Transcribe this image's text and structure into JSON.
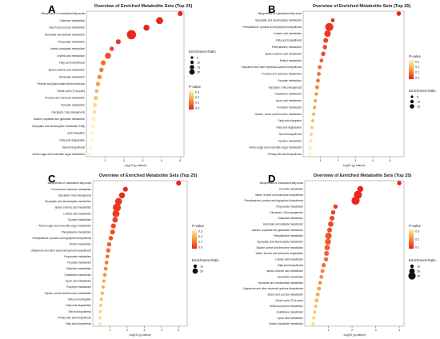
{
  "panels": [
    {
      "label": "A",
      "title": "Overview of Enriched Metabolite Sets (Top 25)",
      "xlabel": "-log10 (p-value)",
      "xlim": [
        0,
        5.2
      ],
      "xticks": [
        1,
        2,
        3,
        4,
        5
      ],
      "categories": [
        "Biosynthesis of unsaturated fatty acids",
        "Galactose metabolism",
        "Starch and sucrose metabolism",
        "Ascorbate and aldarate metabolism",
        "Propanoate metabolism",
        "Inositol phosphate metabolism",
        "Linoleic acid metabolism",
        "Fatty acid biosynthesis",
        "alpha-Linolenic acid metabolism",
        "Butanoate metabolism",
        "Pentose and glucuronate interconversions",
        "Citrate cycle (TCA cycle)",
        "Fructose and mannose metabolism",
        "Pyruvate metabolism",
        "Glycolysis / Gluconeogenesis",
        "Alanine, aspartate and glutamate metabolism",
        "Glyoxylate and dicarboxylate metabolism Fatty",
        "acid elongation",
        "Fatty acid degradation",
        "Steroid biosynthesis",
        "Amino sugar and nucleotide sugar metabolism"
      ],
      "x": [
        5.0,
        3.9,
        3.2,
        2.4,
        1.7,
        1.35,
        1.15,
        0.9,
        0.8,
        0.7,
        0.62,
        0.55,
        0.5,
        0.45,
        0.42,
        0.38,
        0.35,
        0.3,
        0.26,
        0.22,
        0.18
      ],
      "size": [
        6,
        10,
        8,
        14,
        6,
        5,
        8,
        6,
        5,
        5,
        5,
        4,
        5,
        4,
        4,
        4,
        4,
        3,
        3,
        3,
        3
      ],
      "pvalue": [
        0.001,
        0.003,
        0.005,
        0.01,
        0.03,
        0.05,
        0.07,
        0.12,
        0.15,
        0.18,
        0.22,
        0.26,
        0.3,
        0.33,
        0.35,
        0.38,
        0.42,
        0.48,
        0.55,
        0.6,
        0.65
      ],
      "legend": {
        "size_title": "Enrichment Ratio",
        "size_values": [
          "5",
          "10",
          "15",
          "20"
        ],
        "size_refs": [
          5,
          10,
          15,
          20
        ],
        "color_title": "P-value",
        "color_ticks": [
          "0.3",
          "0.2",
          "0.1",
          "0.0"
        ],
        "size_first": true
      }
    },
    {
      "label": "B",
      "title": "Overview of Enriched Metabolite Sets (Top 25)",
      "xlabel": "-log10 (p-value)",
      "xlim": [
        0,
        5.8
      ],
      "xticks": [
        1,
        2,
        3,
        4,
        5
      ],
      "categories": [
        "Biosynthesis of unsaturated fatty acids",
        "Glyoxylate and dicarboxylate metabolism",
        "Phenylalanine, tyrosine and tryptophan biosynthesis",
        "Linoleic acid metabolism",
        "Fatty acid biosynthesis",
        "Phenylalanine metabolism",
        "alpha-Linolenic acid metabolism",
        "Retinol metabolism",
        "Ubiquinone and other terpenoid-quinone biosynthesis",
        "Fructose and mannose metabolism",
        "Pyruvate metabolism",
        "Glycolysis / Gluconeogenesis",
        "Glutathione metabolism",
        "Lipoic acid metabolism",
        "Porphyrin metabolism",
        "Glycine, serine and threonine metabolism",
        "Fatty acid elongation",
        "Fatty acid degradation",
        "Steroid biosynthesis",
        "Tyrosine metabolism",
        "Amino sugar and nucleotide sugar metabolism",
        "Primary bile acid biosynthesis"
      ],
      "x": [
        5.5,
        1.7,
        1.5,
        1.4,
        1.3,
        1.25,
        1.15,
        1.05,
        0.95,
        0.9,
        0.85,
        0.8,
        0.75,
        0.7,
        0.65,
        0.6,
        0.55,
        0.5,
        0.45,
        0.42,
        0.4,
        0.38
      ],
      "size": [
        5,
        4,
        12,
        9,
        6,
        5,
        5,
        4,
        4,
        4,
        4,
        4,
        3,
        3,
        3,
        3,
        3,
        3,
        3,
        3,
        3,
        3
      ],
      "pvalue": [
        0.001,
        0.02,
        0.03,
        0.04,
        0.05,
        0.06,
        0.07,
        0.09,
        0.11,
        0.13,
        0.14,
        0.16,
        0.18,
        0.2,
        0.22,
        0.25,
        0.28,
        0.3,
        0.33,
        0.36,
        0.38,
        0.4
      ],
      "legend": {
        "size_title": "Enrichment Ratio",
        "size_values": [
          "5",
          "10",
          "15"
        ],
        "size_refs": [
          5,
          10,
          15
        ],
        "color_title": "P-value",
        "color_ticks": [
          "0.3",
          "0.2",
          "0.1",
          "0.0"
        ],
        "size_first": false
      }
    },
    {
      "label": "C",
      "title": "Overview of Enriched Metabolite Sets (Top 25)",
      "xlabel": "-log10 (p-value)",
      "xlim": [
        0,
        5.5
      ],
      "xticks": [
        1,
        2,
        3,
        4,
        5
      ],
      "categories": [
        "Biosynthesis of unsaturated fatty acids",
        "Fructose and mannose metabolism",
        "Glycolysis / Gluconeogenesis",
        "Glyoxylate and dicarboxylate metabolism",
        "alpha-Linolenic acid metabolism",
        "Linoleic acid metabolism",
        "Tyrosine metabolism",
        "Amino sugar and nucleotide sugar metabolism",
        "Phenylalanine metabolism",
        "Phenylalanine, tyrosine and tryptophan biosynthesis",
        "Retinol metabolism",
        "Ubiquinone and other terpenoid-quinone biosynthesis",
        "Propanoate metabolism",
        "Pyruvate metabolism",
        "Galactose metabolism",
        "Glutathione metabolism",
        "Lipoic acid metabolism",
        "Porphyrin metabolism",
        "Glycine, serine and threonine metabolism",
        "Fatty acid elongation",
        "Fatty acid degradation",
        "Steroid biosynthesis",
        "Primary bile acid biosynthesis",
        "Fatty acid biosynthesis"
      ],
      "x": [
        5.0,
        1.9,
        1.7,
        1.5,
        1.4,
        1.35,
        1.3,
        1.2,
        1.15,
        1.05,
        0.95,
        0.9,
        0.85,
        0.8,
        0.75,
        0.7,
        0.65,
        0.6,
        0.55,
        0.5,
        0.47,
        0.44,
        0.42,
        0.4
      ],
      "size": [
        6,
        6,
        8,
        10,
        12,
        10,
        7,
        6,
        6,
        5,
        5,
        5,
        4,
        4,
        4,
        4,
        3,
        3,
        3,
        3,
        3,
        3,
        3,
        3
      ],
      "pvalue": [
        0.001,
        0.012,
        0.02,
        0.03,
        0.04,
        0.045,
        0.05,
        0.06,
        0.07,
        0.08,
        0.1,
        0.12,
        0.13,
        0.15,
        0.17,
        0.19,
        0.21,
        0.23,
        0.25,
        0.28,
        0.3,
        0.32,
        0.34,
        0.36
      ],
      "legend": {
        "size_title": "Enrichment Ratio",
        "size_values": [
          "10",
          "20"
        ],
        "size_refs": [
          10,
          20
        ],
        "color_title": "P-value",
        "color_ticks": [
          "0.3",
          "0.2",
          "0.1",
          "0.0"
        ],
        "size_first": false
      }
    },
    {
      "label": "D",
      "title": "Overview of Enriched Metabolite Sets (Top 25)",
      "xlabel": "-log10 (p-value)",
      "xlim": [
        0,
        4.2
      ],
      "xticks": [
        1,
        2,
        3,
        4
      ],
      "categories": [
        "Biosynthesis of unsaturated fatty acids",
        "Pyruvate metabolism",
        "Valine, leucine and isoleucine biosynthesis",
        "Phenylalanine, tyrosine and tryptophan biosynthesis",
        "Propanoate metabolism",
        "Glycolysis / Gluconeogenesis",
        "Galactose metabolism",
        "Ascorbate and aldarate metabolism",
        "Alanine, aspartate and glutamate metabolism",
        "Phenylalanine metabolism",
        "Glyoxylate and dicarboxylate metabolism",
        "Glycine, serine and threonine metabolism",
        "Valine, leucine and isoleucine degradation",
        "Linoleic acid metabolism",
        "Fatty acid biosynthesis",
        "alpha-Linolenic acid metabolism",
        "Butanoate metabolism",
        "Nicotinate and nicotinamide metabolism",
        "Ubiquinone and other terpenoid-quinone biosynthesis",
        "Starch and sucrose metabolism",
        "Citrate cycle (TCA cycle)",
        "Selenocompound metabolism",
        "Glutathione metabolism",
        "Lipoic acid metabolism",
        "Inositol phosphate metabolism"
      ],
      "x": [
        4.0,
        2.35,
        2.25,
        2.15,
        1.3,
        1.2,
        1.15,
        1.1,
        1.05,
        1.0,
        0.98,
        0.95,
        0.92,
        0.9,
        0.8,
        0.75,
        0.7,
        0.65,
        0.6,
        0.55,
        0.5,
        0.46,
        0.42,
        0.38,
        0.35
      ],
      "size": [
        5,
        8,
        12,
        12,
        5,
        5,
        6,
        7,
        6,
        9,
        8,
        7,
        6,
        5,
        5,
        4,
        4,
        4,
        4,
        4,
        4,
        3,
        3,
        3,
        3
      ],
      "pvalue": [
        0.001,
        0.01,
        0.012,
        0.014,
        0.05,
        0.06,
        0.07,
        0.08,
        0.09,
        0.1,
        0.11,
        0.12,
        0.13,
        0.14,
        0.16,
        0.18,
        0.2,
        0.22,
        0.24,
        0.26,
        0.28,
        0.3,
        0.32,
        0.34,
        0.36
      ],
      "legend": {
        "size_title": "Enrichment Ratio",
        "size_values": [
          "10",
          "20",
          "30"
        ],
        "size_refs": [
          10,
          20,
          30
        ],
        "color_title": "P-value",
        "color_ticks": [
          "0.3",
          "0.2",
          "0.1"
        ],
        "size_first": false
      }
    }
  ],
  "chart_data": [
    {
      "type": "scatter",
      "title": "Overview of Enriched Metabolite Sets (Top 25)",
      "xlabel": "-log10 (p-value)",
      "ylabel": "",
      "panel": "A"
    },
    {
      "type": "scatter",
      "title": "Overview of Enriched Metabolite Sets (Top 25)",
      "xlabel": "-log10 (p-value)",
      "ylabel": "",
      "panel": "B"
    },
    {
      "type": "scatter",
      "title": "Overview of Enriched Metabolite Sets (Top 25)",
      "xlabel": "-log10 (p-value)",
      "ylabel": "",
      "panel": "C"
    },
    {
      "type": "scatter",
      "title": "Overview of Enriched Metabolite Sets (Top 25)",
      "xlabel": "-log10 (p-value)",
      "ylabel": "",
      "panel": "D"
    }
  ],
  "colors": {
    "low_p": "#e8221a",
    "mid_p": "#f59a3d",
    "high_p": "#fff5c2",
    "D_low_p": "#e8221a",
    "D_high_p": "#fff07a",
    "axis": "#333333"
  }
}
